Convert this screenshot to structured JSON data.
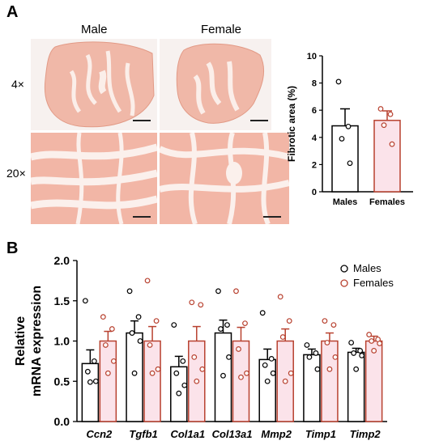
{
  "panels": {
    "a": "A",
    "b": "B"
  },
  "micrographs": {
    "columns": [
      "Male",
      "Female"
    ],
    "rows": [
      "4×",
      "20×"
    ]
  },
  "colors": {
    "males": "#000000",
    "females": "#b8412f",
    "female_fill": "#fbe3ea",
    "tissue": "#f0b3a3"
  },
  "chart_data": [
    {
      "type": "bar",
      "categories": [
        "Males",
        "Females"
      ],
      "values": [
        4.85,
        5.25
      ],
      "errors": [
        1.25,
        0.7
      ],
      "points": [
        [
          8.1,
          4.8,
          3.9,
          2.1
        ],
        [
          6.1,
          5.7,
          4.9,
          3.5
        ]
      ],
      "ylabel": "Fibrotic area (%)",
      "ylim": [
        0,
        10
      ],
      "yticks": [
        0,
        2,
        4,
        6,
        8,
        10
      ]
    },
    {
      "type": "bar",
      "categories": [
        "Ccn2",
        "Tgfb1",
        "Col1a1",
        "Col13a1",
        "Mmp2",
        "Timp1",
        "Timp2"
      ],
      "ylabel": "Relative\nmRNA expression",
      "ylim": [
        0,
        2.0
      ],
      "yticks": [
        "0.0",
        "0.5",
        "1.0",
        "1.5",
        "2.0"
      ],
      "legend": "top-right",
      "series": [
        {
          "name": "Males",
          "values": [
            0.72,
            1.1,
            0.68,
            1.1,
            0.77,
            0.83,
            0.86
          ],
          "errors": [
            0.17,
            0.15,
            0.13,
            0.16,
            0.13,
            0.07,
            0.05
          ],
          "points": [
            [
              1.5,
              0.75,
              0.62,
              0.5,
              0.49
            ],
            [
              1.62,
              1.3,
              1.1,
              1.0,
              0.6
            ],
            [
              1.2,
              0.75,
              0.6,
              0.45,
              0.35
            ],
            [
              1.62,
              1.2,
              1.15,
              0.8,
              0.57
            ],
            [
              1.35,
              0.78,
              0.7,
              0.6,
              0.5
            ],
            [
              0.95,
              0.85,
              0.8,
              0.65
            ],
            [
              0.98,
              0.88,
              0.85,
              0.82,
              0.65
            ]
          ]
        },
        {
          "name": "Females",
          "values": [
            1.0,
            1.0,
            1.0,
            1.0,
            1.0,
            1.0,
            1.0
          ],
          "errors": [
            0.12,
            0.18,
            0.18,
            0.17,
            0.15,
            0.1,
            0.06
          ],
          "points": [
            [
              1.3,
              1.15,
              0.95,
              0.75,
              0.6
            ],
            [
              1.75,
              1.25,
              0.95,
              0.65,
              0.6
            ],
            [
              1.48,
              1.45,
              0.8,
              0.65,
              0.5
            ],
            [
              1.62,
              1.22,
              0.9,
              0.6,
              0.55
            ],
            [
              1.55,
              1.25,
              1.05,
              0.6,
              0.5
            ],
            [
              1.25,
              1.2,
              0.98,
              0.8,
              0.65
            ],
            [
              1.08,
              1.02,
              1.0,
              0.97,
              0.88
            ]
          ]
        }
      ]
    }
  ]
}
